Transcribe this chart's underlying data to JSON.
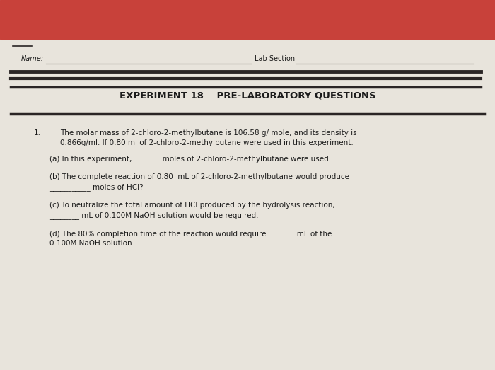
{
  "bg_top_color": "#c8413a",
  "bg_paper_color": "#e8e4dc",
  "name_label": "Name:",
  "lab_section_label": "Lab Section",
  "title_line1": "EXPERIMENT 18    PRE-LABORATORY QUESTIONS",
  "question_number": "1.",
  "intro_text_line1": "The molar mass of 2-chloro-2-methylbutane is 106.58 g/ mole, and its density is",
  "intro_text_line2": "0.866g/ml. If 0.80 ml of 2-chloro-2-methylbutane were used in this experiment.",
  "qa": "(a) In this experiment, _______ moles of 2-chloro-2-methylbutane were used.",
  "qb_line1": "(b) The complete reaction of 0.80  mL of 2-chloro-2-methylbutane would produce",
  "qb_line2": "___________ moles of HCl?",
  "qc_line1": "(c) To neutralize the total amount of HCl produced by the hydrolysis reaction,",
  "qc_line2": "________ mL of 0.100M NaOH solution would be required.",
  "qd_line1": "(d) The 80% completion time of the reaction would require _______ mL of the",
  "qd_line2": "0.100M NaOH solution.",
  "text_color": "#1c1c1c",
  "line_color": "#2a2525",
  "font_size_title": 9.5,
  "font_size_body": 7.5,
  "font_size_name": 7.0
}
